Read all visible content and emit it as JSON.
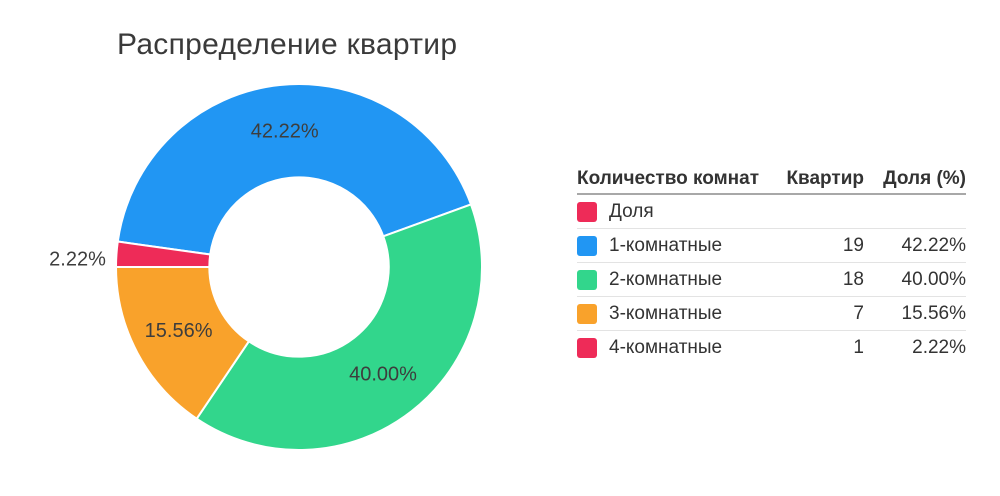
{
  "chart_data": {
    "type": "pie",
    "donut": true,
    "title": "Распределение квартир",
    "series_name": "Доля",
    "categories": [
      "1-комнатные",
      "2-комнатные",
      "3-комнатные",
      "4-комнатные"
    ],
    "counts": [
      19,
      18,
      7,
      1
    ],
    "shares_pct": [
      42.22,
      40.0,
      15.56,
      2.22
    ],
    "slice_labels": [
      "42.22%",
      "40.00%",
      "15.56%",
      "2.22%"
    ],
    "colors": [
      "#2196F3",
      "#32D68C",
      "#F9A22B",
      "#EE2B58"
    ],
    "start_angle_deg": 278,
    "clockwise": true,
    "inner_radius_ratio": 0.49,
    "legend_position": "right",
    "label_color": "#3d3d3d"
  },
  "table": {
    "headers": [
      "Количество комнат",
      "Квартир",
      "Доля (%)"
    ],
    "series_row": {
      "label": "Доля",
      "color": "#EE2B58"
    },
    "rows": [
      {
        "label": "1-комнатные",
        "color": "#2196F3",
        "count": "19",
        "share": "42.22%"
      },
      {
        "label": "2-комнатные",
        "color": "#32D68C",
        "count": "18",
        "share": "40.00%"
      },
      {
        "label": "3-комнатные",
        "color": "#F9A22B",
        "count": "7",
        "share": "15.56%"
      },
      {
        "label": "4-комнатные",
        "color": "#EE2B58",
        "count": "1",
        "share": "2.22%"
      }
    ]
  }
}
